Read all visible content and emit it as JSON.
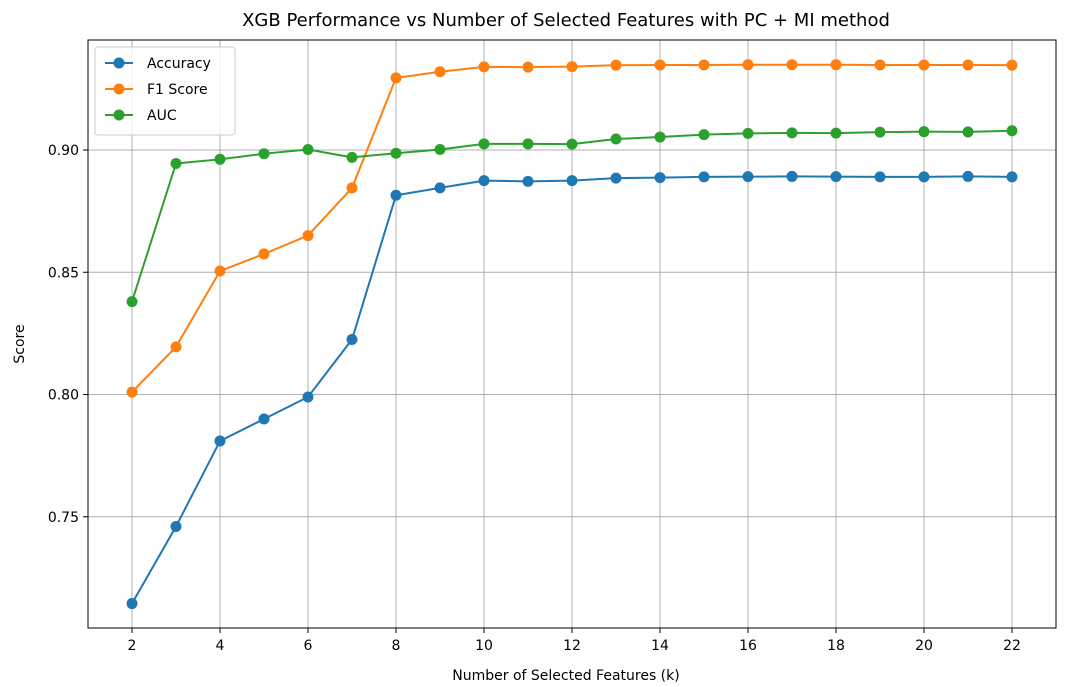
{
  "chart_data": {
    "type": "line",
    "title": "XGB Performance vs Number of Selected Features with PC + MI method",
    "xlabel": "Number of Selected Features (k)",
    "ylabel": "Score",
    "xlim": [
      1,
      23
    ],
    "ylim": [
      0.7045,
      0.945
    ],
    "x": [
      2,
      3,
      4,
      5,
      6,
      7,
      8,
      9,
      10,
      11,
      12,
      13,
      14,
      15,
      16,
      17,
      18,
      19,
      20,
      21,
      22
    ],
    "xticks": [
      "2",
      "4",
      "6",
      "8",
      "10",
      "12",
      "14",
      "16",
      "18",
      "20",
      "22"
    ],
    "yticks": [
      "0.75",
      "0.80",
      "0.85",
      "0.90"
    ],
    "grid": true,
    "legend_position": "upper-left",
    "series": [
      {
        "name": "Accuracy",
        "color": "#1f77b4",
        "values": [
          0.7145,
          0.746,
          0.781,
          0.79,
          0.799,
          0.8225,
          0.8815,
          0.8845,
          0.8875,
          0.8872,
          0.8875,
          0.8885,
          0.8887,
          0.889,
          0.8891,
          0.8892,
          0.8891,
          0.889,
          0.889,
          0.8892,
          0.889
        ]
      },
      {
        "name": "F1 Score",
        "color": "#ff7f0e",
        "values": [
          0.801,
          0.8195,
          0.8505,
          0.8575,
          0.865,
          0.8845,
          0.9295,
          0.932,
          0.934,
          0.9339,
          0.9341,
          0.9347,
          0.9348,
          0.9348,
          0.9349,
          0.9349,
          0.9349,
          0.9348,
          0.9348,
          0.9348,
          0.9347
        ]
      },
      {
        "name": "AUC",
        "color": "#2ca02c",
        "values": [
          0.838,
          0.8945,
          0.8962,
          0.8985,
          0.9002,
          0.897,
          0.8987,
          0.9002,
          0.9025,
          0.9025,
          0.9024,
          0.9045,
          0.9053,
          0.9063,
          0.9068,
          0.907,
          0.9069,
          0.9073,
          0.9075,
          0.9074,
          0.9079
        ]
      }
    ]
  }
}
